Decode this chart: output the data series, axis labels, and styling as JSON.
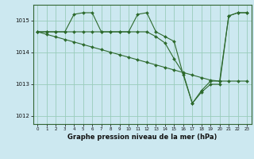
{
  "xlabel": "Graphe pression niveau de la mer (hPa)",
  "bg_color": "#cce8f0",
  "line_color": "#2d6a2d",
  "grid_color": "#99ccbb",
  "ylim": [
    1011.75,
    1015.5
  ],
  "yticks": [
    1012,
    1013,
    1014,
    1015
  ],
  "xticks": [
    0,
    1,
    2,
    3,
    4,
    5,
    6,
    7,
    8,
    9,
    10,
    11,
    12,
    13,
    14,
    15,
    16,
    17,
    18,
    19,
    20,
    21,
    22,
    23
  ],
  "s1": [
    1014.65,
    1014.65,
    1014.65,
    1014.65,
    1015.2,
    1015.25,
    1015.25,
    1014.65,
    1014.65,
    1014.65,
    1014.65,
    1015.2,
    1015.25,
    1014.65,
    1014.5,
    1014.35,
    1013.3,
    1012.4,
    1012.8,
    1013.1,
    1013.1,
    1015.15,
    1015.25,
    1015.25
  ],
  "s2": [
    1014.65,
    1014.65,
    1014.65,
    1014.65,
    1014.65,
    1014.65,
    1014.65,
    1014.65,
    1014.65,
    1014.65,
    1014.65,
    1014.65,
    1014.65,
    1014.5,
    1014.3,
    1013.8,
    1013.35,
    1012.4,
    1012.75,
    1013.0,
    1013.0,
    1015.15,
    1015.25,
    1015.25
  ],
  "s3": [
    1014.65,
    1014.57,
    1014.49,
    1014.41,
    1014.33,
    1014.25,
    1014.17,
    1014.09,
    1014.01,
    1013.93,
    1013.85,
    1013.77,
    1013.69,
    1013.61,
    1013.53,
    1013.45,
    1013.37,
    1013.29,
    1013.21,
    1013.13,
    1013.1,
    1013.1,
    1013.1,
    1013.1
  ]
}
